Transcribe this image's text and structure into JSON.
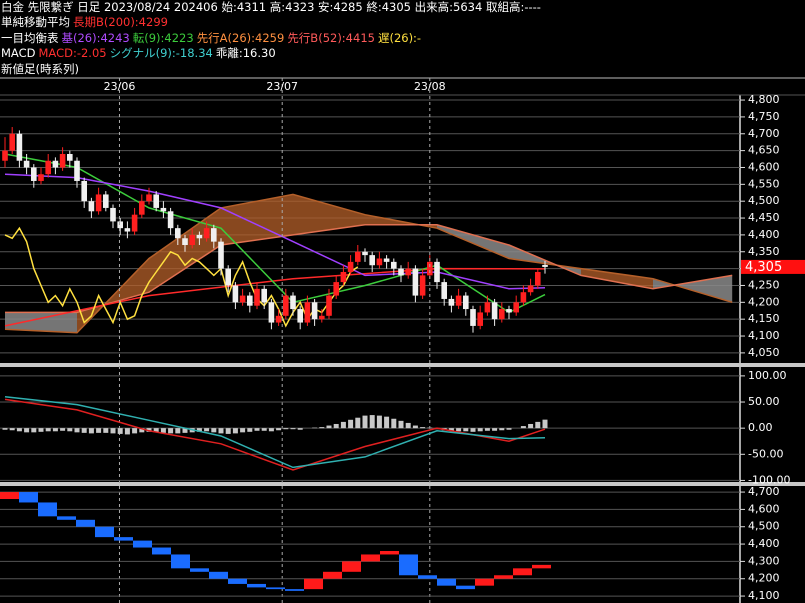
{
  "header": {
    "lines": [
      [
        {
          "text": "白金 先限繋ぎ 日足 2023/08/24 202406 始:4311 高:4323 安:4285 終:4305 出来高:5634 取組高:----",
          "color": "#ffffff"
        }
      ],
      [
        {
          "text": "単純移動平均",
          "color": "#ffffff"
        },
        {
          "text": "長期B(200):4299",
          "color": "#ff3030"
        }
      ],
      [
        {
          "text": "一目均衡表",
          "color": "#ffffff"
        },
        {
          "text": "基(26):4243",
          "color": "#b04cff"
        },
        {
          "text": "転(9):4223",
          "color": "#3ccc3c"
        },
        {
          "text": "先行A(26):4259",
          "color": "#ff9040"
        },
        {
          "text": "先行B(52):4415",
          "color": "#ff5a5a"
        },
        {
          "text": "遅(26):-",
          "color": "#ffe040"
        }
      ],
      [
        {
          "text": "MACD",
          "color": "#ffffff"
        },
        {
          "text": "MACD:-2.05",
          "color": "#ff3030"
        },
        {
          "text": "シグナル(9):-18.34",
          "color": "#40d0d0"
        },
        {
          "text": "乖離:16.30",
          "color": "#ffffff"
        }
      ],
      [
        {
          "text": "新値足(時系列)",
          "color": "#ffffff"
        }
      ]
    ]
  },
  "chart_data": [
    {
      "type": "candlestick",
      "up_color": "#ff2020",
      "down_color": "#f0f0f0",
      "cloud_up_color": "#b5602a",
      "cloud_down_color": "#8a8a8a",
      "x_labels": [
        {
          "value": 15.9,
          "label": "23/06"
        },
        {
          "value": 38.5,
          "label": "23/07"
        },
        {
          "value": 59,
          "label": "23/08"
        }
      ],
      "ylim": [
        4020,
        4815
      ],
      "yticks": [
        {
          "value": 4050,
          "label": "4,050"
        },
        {
          "value": 4100,
          "label": "4,100"
        },
        {
          "value": 4150,
          "label": "4,150"
        },
        {
          "value": 4200,
          "label": "4,200"
        },
        {
          "value": 4250,
          "label": "4,250"
        },
        {
          "value": 4300,
          "label": "4,300"
        },
        {
          "value": 4350,
          "label": "4,350"
        },
        {
          "value": 4400,
          "label": "4,400"
        },
        {
          "value": 4450,
          "label": "4,450"
        },
        {
          "value": 4500,
          "label": "4,500"
        },
        {
          "value": 4550,
          "label": "4,550"
        },
        {
          "value": 4600,
          "label": "4,600"
        },
        {
          "value": 4650,
          "label": "4,650"
        },
        {
          "value": 4700,
          "label": "4,700"
        },
        {
          "value": 4750,
          "label": "4,750"
        },
        {
          "value": 4800,
          "label": "4,800"
        }
      ],
      "last_price": {
        "value": 4305,
        "label": "4,305"
      },
      "ohlc": [
        [
          4620,
          4690,
          4600,
          4650
        ],
        [
          4650,
          4720,
          4640,
          4700
        ],
        [
          4700,
          4710,
          4600,
          4620
        ],
        [
          4620,
          4640,
          4580,
          4600
        ],
        [
          4600,
          4610,
          4540,
          4560
        ],
        [
          4560,
          4600,
          4550,
          4580
        ],
        [
          4580,
          4640,
          4570,
          4620
        ],
        [
          4620,
          4630,
          4580,
          4600
        ],
        [
          4600,
          4660,
          4590,
          4640
        ],
        [
          4640,
          4650,
          4600,
          4620
        ],
        [
          4620,
          4630,
          4540,
          4560
        ],
        [
          4560,
          4570,
          4480,
          4500
        ],
        [
          4500,
          4510,
          4450,
          4470
        ],
        [
          4470,
          4540,
          4460,
          4520
        ],
        [
          4520,
          4530,
          4470,
          4480
        ],
        [
          4480,
          4490,
          4420,
          4440
        ],
        [
          4440,
          4450,
          4400,
          4420
        ],
        [
          4420,
          4440,
          4390,
          4410
        ],
        [
          4410,
          4480,
          4400,
          4460
        ],
        [
          4460,
          4520,
          4450,
          4500
        ],
        [
          4500,
          4540,
          4490,
          4520
        ],
        [
          4520,
          4530,
          4470,
          4480
        ],
        [
          4480,
          4500,
          4450,
          4470
        ],
        [
          4470,
          4480,
          4400,
          4420
        ],
        [
          4420,
          4430,
          4370,
          4390
        ],
        [
          4390,
          4400,
          4350,
          4370
        ],
        [
          4370,
          4420,
          4360,
          4400
        ],
        [
          4400,
          4410,
          4370,
          4390
        ],
        [
          4390,
          4440,
          4380,
          4420
        ],
        [
          4420,
          4430,
          4360,
          4380
        ],
        [
          4380,
          4390,
          4280,
          4300
        ],
        [
          4300,
          4310,
          4230,
          4250
        ],
        [
          4250,
          4260,
          4180,
          4200
        ],
        [
          4200,
          4240,
          4190,
          4220
        ],
        [
          4220,
          4230,
          4170,
          4190
        ],
        [
          4190,
          4260,
          4180,
          4240
        ],
        [
          4240,
          4250,
          4180,
          4200
        ],
        [
          4200,
          4210,
          4120,
          4140
        ],
        [
          4140,
          4180,
          4130,
          4160
        ],
        [
          4160,
          4240,
          4150,
          4220
        ],
        [
          4220,
          4230,
          4160,
          4180
        ],
        [
          4180,
          4190,
          4120,
          4140
        ],
        [
          4140,
          4220,
          4130,
          4200
        ],
        [
          4200,
          4210,
          4130,
          4150
        ],
        [
          4150,
          4180,
          4140,
          4160
        ],
        [
          4160,
          4240,
          4150,
          4220
        ],
        [
          4220,
          4280,
          4210,
          4260
        ],
        [
          4260,
          4310,
          4250,
          4290
        ],
        [
          4290,
          4340,
          4280,
          4320
        ],
        [
          4320,
          4370,
          4310,
          4350
        ],
        [
          4350,
          4360,
          4320,
          4340
        ],
        [
          4340,
          4350,
          4290,
          4310
        ],
        [
          4310,
          4350,
          4300,
          4330
        ],
        [
          4330,
          4340,
          4300,
          4320
        ],
        [
          4320,
          4330,
          4280,
          4300
        ],
        [
          4300,
          4310,
          4260,
          4280
        ],
        [
          4280,
          4320,
          4270,
          4300
        ],
        [
          4300,
          4310,
          4200,
          4220
        ],
        [
          4220,
          4300,
          4210,
          4280
        ],
        [
          4280,
          4340,
          4270,
          4320
        ],
        [
          4320,
          4330,
          4240,
          4260
        ],
        [
          4260,
          4270,
          4190,
          4210
        ],
        [
          4210,
          4220,
          4170,
          4190
        ],
        [
          4190,
          4240,
          4180,
          4220
        ],
        [
          4220,
          4230,
          4160,
          4180
        ],
        [
          4180,
          4190,
          4110,
          4130
        ],
        [
          4130,
          4190,
          4120,
          4170
        ],
        [
          4170,
          4220,
          4160,
          4200
        ],
        [
          4200,
          4210,
          4130,
          4150
        ],
        [
          4150,
          4200,
          4140,
          4180
        ],
        [
          4180,
          4190,
          4150,
          4170
        ],
        [
          4170,
          4220,
          4160,
          4200
        ],
        [
          4200,
          4250,
          4190,
          4230
        ],
        [
          4230,
          4270,
          4220,
          4250
        ],
        [
          4250,
          4300,
          4240,
          4290
        ],
        [
          4311,
          4323,
          4285,
          4305
        ]
      ],
      "cloud": {
        "x": [
          0,
          10,
          20,
          30,
          40,
          50,
          60,
          70,
          80,
          90,
          101
        ],
        "span_a": [
          4120,
          4110,
          4330,
          4480,
          4520,
          4460,
          4420,
          4330,
          4300,
          4270,
          4200
        ],
        "span_b": [
          4170,
          4170,
          4230,
          4370,
          4400,
          4430,
          4430,
          4370,
          4280,
          4240,
          4280
        ]
      },
      "series": [
        {
          "color": "#ff2a2a",
          "x": [
            0,
            20,
            40,
            60,
            75
          ],
          "values": [
            4130,
            4220,
            4270,
            4300,
            4299
          ]
        },
        {
          "color": "#3ccc3c",
          "x": [
            0,
            10,
            20,
            30,
            40,
            50,
            60,
            70,
            75
          ],
          "values": [
            4640,
            4600,
            4480,
            4420,
            4200,
            4250,
            4310,
            4170,
            4223
          ]
        },
        {
          "color": "#a040ff",
          "x": [
            0,
            10,
            20,
            30,
            40,
            50,
            60,
            70,
            75
          ],
          "values": [
            4580,
            4570,
            4530,
            4480,
            4380,
            4280,
            4290,
            4240,
            4243
          ]
        },
        {
          "color": "#ffe040",
          "values": [
            4400,
            4390,
            4420,
            4380,
            4300,
            4250,
            4200,
            4220,
            4190,
            4240,
            4200,
            4140,
            4160,
            4220,
            4180,
            4140,
            4200,
            4150,
            4160,
            4220,
            4260,
            4290,
            4320,
            4350,
            4340,
            4310,
            4330,
            4320,
            4300,
            4280,
            4300,
            4220,
            4280,
            4320,
            4260,
            4210,
            4190,
            4220,
            4180,
            4130,
            4170,
            4200,
            4150,
            4180,
            4170,
            4200,
            4230,
            4250,
            4290,
            4305
          ]
        }
      ]
    },
    {
      "type": "macd",
      "ylim": [
        -103,
        117
      ],
      "yticks": [
        {
          "value": 100,
          "label": "100.00"
        },
        {
          "value": 50,
          "label": "50.00"
        },
        {
          "value": 0,
          "label": "0.00"
        },
        {
          "value": -50,
          "label": "-50.00"
        },
        {
          "value": -100,
          "label": "-100.00"
        }
      ],
      "histogram": {
        "color": "#c8c8c8",
        "values": [
          -3,
          -4,
          -6,
          -8,
          -8,
          -7,
          -6,
          -6,
          -5,
          -6,
          -8,
          -9,
          -10,
          -9,
          -9,
          -10,
          -11,
          -12,
          -10,
          -8,
          -7,
          -8,
          -9,
          -10,
          -10,
          -9,
          -8,
          -7,
          -6,
          -8,
          -10,
          -11,
          -10,
          -8,
          -7,
          -5,
          -5,
          -6,
          -4,
          -2,
          -2,
          -3,
          0,
          1,
          2,
          5,
          8,
          12,
          16,
          20,
          24,
          25,
          24,
          22,
          18,
          14,
          10,
          5,
          2,
          1,
          -2,
          -4,
          -5,
          -6,
          -6,
          -7,
          -6,
          -5,
          -5,
          -4,
          -3,
          0,
          4,
          8,
          12,
          16.3
        ]
      },
      "series": [
        {
          "color": "#e02020",
          "x": [
            0,
            10,
            20,
            30,
            40,
            50,
            60,
            70,
            75
          ],
          "values": [
            55,
            35,
            -5,
            -30,
            -80,
            -35,
            0,
            -25,
            -2.05
          ]
        },
        {
          "color": "#30b0b0",
          "x": [
            0,
            10,
            20,
            30,
            40,
            50,
            60,
            70,
            75
          ],
          "values": [
            60,
            45,
            15,
            -15,
            -75,
            -55,
            -5,
            -20,
            -18.34
          ]
        }
      ]
    },
    {
      "type": "line-break",
      "up_color": "#ff1a1a",
      "down_color": "#1a6cff",
      "ylim": [
        4060,
        4735
      ],
      "yticks": [
        {
          "value": 4100,
          "label": "4,100"
        },
        {
          "value": 4200,
          "label": "4,200"
        },
        {
          "value": 4300,
          "label": "4,300"
        },
        {
          "value": 4400,
          "label": "4,400"
        },
        {
          "value": 4500,
          "label": "4,500"
        },
        {
          "value": 4600,
          "label": "4,600"
        },
        {
          "value": 4700,
          "label": "4,700"
        }
      ],
      "bricks": [
        [
          4660,
          4700
        ],
        [
          4700,
          4640
        ],
        [
          4640,
          4560
        ],
        [
          4560,
          4540
        ],
        [
          4540,
          4500
        ],
        [
          4500,
          4440
        ],
        [
          4440,
          4420
        ],
        [
          4420,
          4380
        ],
        [
          4380,
          4340
        ],
        [
          4340,
          4260
        ],
        [
          4260,
          4240
        ],
        [
          4240,
          4200
        ],
        [
          4200,
          4170
        ],
        [
          4170,
          4150
        ],
        [
          4150,
          4140
        ],
        [
          4140,
          4130
        ],
        [
          4140,
          4200
        ],
        [
          4200,
          4240
        ],
        [
          4240,
          4300
        ],
        [
          4300,
          4340
        ],
        [
          4340,
          4360
        ],
        [
          4340,
          4220
        ],
        [
          4220,
          4200
        ],
        [
          4200,
          4160
        ],
        [
          4160,
          4140
        ],
        [
          4160,
          4200
        ],
        [
          4200,
          4220
        ],
        [
          4220,
          4260
        ],
        [
          4260,
          4280
        ]
      ]
    }
  ]
}
